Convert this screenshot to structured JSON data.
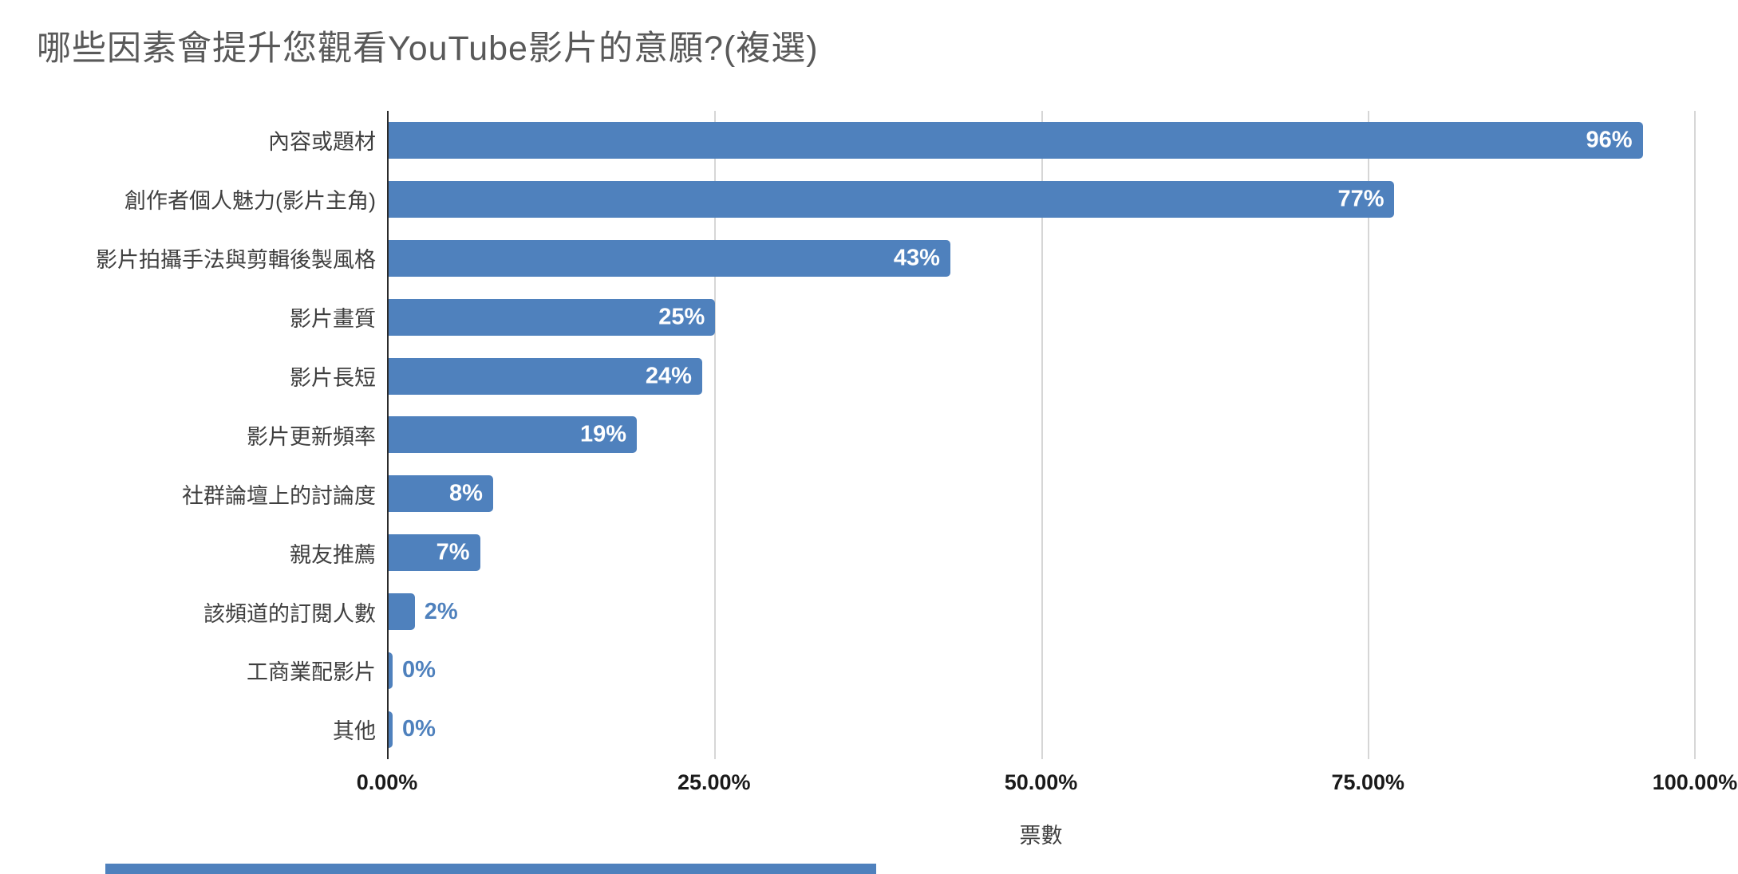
{
  "chart_data": {
    "type": "bar",
    "orientation": "horizontal",
    "title": "哪些因素會提升您觀看YouTube影片的意願?(複選)",
    "xlabel": "票數",
    "xlim": [
      0,
      100
    ],
    "grid": true,
    "legend": false,
    "categories": [
      "內容或題材",
      "創作者個人魅力(影片主角)",
      "影片拍攝手法與剪輯後製風格",
      "影片畫質",
      "影片長短",
      "影片更新頻率",
      "社群論壇上的討論度",
      "親友推薦",
      "該頻道的訂閱人數",
      "工商業配影片",
      "其他"
    ],
    "values": [
      96,
      77,
      43,
      25,
      24,
      19,
      8,
      7,
      2,
      0,
      0
    ],
    "value_labels": [
      "96%",
      "77%",
      "43%",
      "25%",
      "24%",
      "19%",
      "8%",
      "7%",
      "2%",
      "0%",
      "0%"
    ],
    "x_ticks": [
      {
        "label": "0.00%",
        "value": 0
      },
      {
        "label": "25.00%",
        "value": 25
      },
      {
        "label": "50.00%",
        "value": 50
      },
      {
        "label": "75.00%",
        "value": 75
      },
      {
        "label": "100.00%",
        "value": 100
      }
    ],
    "inside_label_min_value": 7
  },
  "style": {
    "bar_color": "#4f81bd",
    "outside_label_color": "#4f81bd",
    "title_color": "#595959",
    "gridline_color": "#d6d6d6",
    "axis_color": "#2b2b2b",
    "tick_label_color": "#1a1a1a",
    "category_label_color": "#3f3f3f"
  }
}
